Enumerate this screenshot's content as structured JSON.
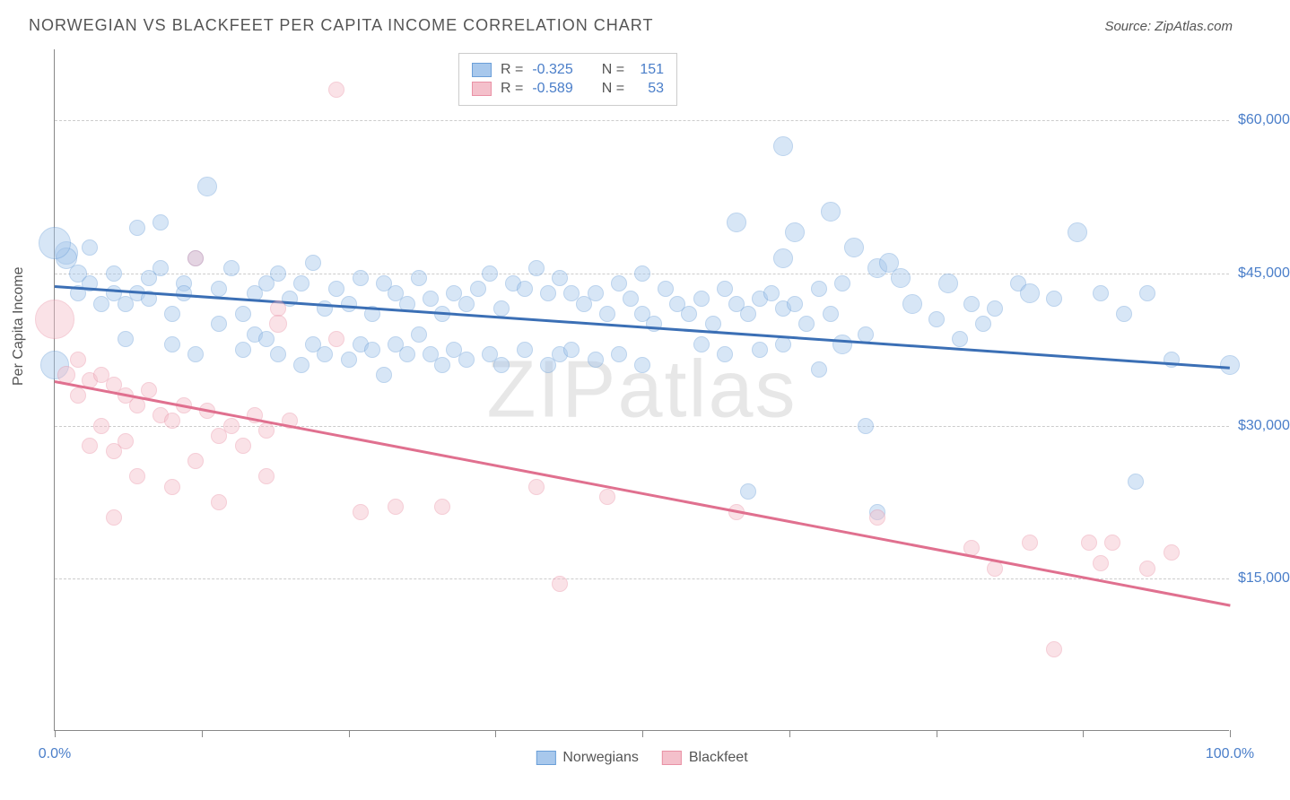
{
  "title": "NORWEGIAN VS BLACKFEET PER CAPITA INCOME CORRELATION CHART",
  "source": "Source: ZipAtlas.com",
  "watermark": "ZIPatlas",
  "y_axis_label": "Per Capita Income",
  "chart": {
    "type": "scatter",
    "background_color": "#ffffff",
    "grid_color": "#cccccc",
    "grid_style": "dashed",
    "axis_color": "#888888",
    "xlim": [
      0,
      100
    ],
    "ylim": [
      0,
      67000
    ],
    "x_ticks": [
      0,
      12.5,
      25,
      37.5,
      50,
      62.5,
      75,
      87.5,
      100
    ],
    "x_tick_labels": {
      "0": "0.0%",
      "100": "100.0%"
    },
    "y_gridlines": [
      15000,
      30000,
      45000,
      60000
    ],
    "y_tick_labels": {
      "15000": "$15,000",
      "30000": "$30,000",
      "45000": "$45,000",
      "60000": "$60,000"
    },
    "y_label_color": "#4a7ec9",
    "x_label_color": "#4a7ec9",
    "marker_radius": 9,
    "marker_opacity": 0.45,
    "line_width": 2.5
  },
  "series": [
    {
      "name": "Norwegians",
      "color_fill": "#a8c8ec",
      "color_stroke": "#6b9fd8",
      "color_line": "#3b6fb5",
      "R": "-0.325",
      "N": "151",
      "trend": {
        "x1": 0,
        "y1": 43800,
        "x2": 100,
        "y2": 35800
      },
      "points": [
        [
          1,
          47000,
          13
        ],
        [
          1,
          46500,
          12
        ],
        [
          2,
          45000,
          10
        ],
        [
          0,
          48000,
          18
        ],
        [
          0,
          36000,
          16
        ],
        [
          2,
          43000,
          9
        ],
        [
          3,
          47500,
          9
        ],
        [
          3,
          44000,
          9
        ],
        [
          4,
          42000,
          9
        ],
        [
          5,
          45000,
          9
        ],
        [
          5,
          43000,
          9
        ],
        [
          6,
          42000,
          9
        ],
        [
          6,
          38500,
          9
        ],
        [
          7,
          49500,
          9
        ],
        [
          7,
          43000,
          9
        ],
        [
          8,
          44500,
          9
        ],
        [
          8,
          42500,
          9
        ],
        [
          9,
          50000,
          9
        ],
        [
          9,
          45500,
          9
        ],
        [
          10,
          41000,
          9
        ],
        [
          10,
          38000,
          9
        ],
        [
          11,
          44000,
          9
        ],
        [
          11,
          43000,
          9
        ],
        [
          12,
          46500,
          9
        ],
        [
          12,
          37000,
          9
        ],
        [
          13,
          53500,
          11
        ],
        [
          14,
          43500,
          9
        ],
        [
          14,
          40000,
          9
        ],
        [
          15,
          45500,
          9
        ],
        [
          16,
          41000,
          9
        ],
        [
          16,
          37500,
          9
        ],
        [
          17,
          43000,
          9
        ],
        [
          17,
          39000,
          9
        ],
        [
          18,
          44000,
          9
        ],
        [
          18,
          38500,
          9
        ],
        [
          19,
          45000,
          9
        ],
        [
          19,
          37000,
          9
        ],
        [
          20,
          42500,
          9
        ],
        [
          21,
          44000,
          9
        ],
        [
          21,
          36000,
          9
        ],
        [
          22,
          46000,
          9
        ],
        [
          22,
          38000,
          9
        ],
        [
          23,
          41500,
          9
        ],
        [
          23,
          37000,
          9
        ],
        [
          24,
          43500,
          9
        ],
        [
          25,
          42000,
          9
        ],
        [
          25,
          36500,
          9
        ],
        [
          26,
          44500,
          9
        ],
        [
          26,
          38000,
          9
        ],
        [
          27,
          41000,
          9
        ],
        [
          27,
          37500,
          9
        ],
        [
          28,
          44000,
          9
        ],
        [
          28,
          35000,
          9
        ],
        [
          29,
          43000,
          9
        ],
        [
          29,
          38000,
          9
        ],
        [
          30,
          42000,
          9
        ],
        [
          30,
          37000,
          9
        ],
        [
          31,
          44500,
          9
        ],
        [
          31,
          39000,
          9
        ],
        [
          32,
          42500,
          9
        ],
        [
          32,
          37000,
          9
        ],
        [
          33,
          41000,
          9
        ],
        [
          33,
          36000,
          9
        ],
        [
          34,
          43000,
          9
        ],
        [
          34,
          37500,
          9
        ],
        [
          35,
          42000,
          9
        ],
        [
          35,
          36500,
          9
        ],
        [
          36,
          43500,
          9
        ],
        [
          37,
          45000,
          9
        ],
        [
          37,
          37000,
          9
        ],
        [
          38,
          41500,
          9
        ],
        [
          38,
          36000,
          9
        ],
        [
          39,
          44000,
          9
        ],
        [
          40,
          43500,
          9
        ],
        [
          40,
          37500,
          9
        ],
        [
          41,
          45500,
          9
        ],
        [
          42,
          43000,
          9
        ],
        [
          42,
          36000,
          9
        ],
        [
          43,
          44500,
          9
        ],
        [
          43,
          37000,
          9
        ],
        [
          44,
          43000,
          9
        ],
        [
          44,
          37500,
          9
        ],
        [
          45,
          42000,
          9
        ],
        [
          46,
          43000,
          9
        ],
        [
          46,
          36500,
          9
        ],
        [
          47,
          41000,
          9
        ],
        [
          48,
          44000,
          9
        ],
        [
          48,
          37000,
          9
        ],
        [
          49,
          42500,
          9
        ],
        [
          50,
          41000,
          9
        ],
        [
          50,
          36000,
          9
        ],
        [
          50,
          45000,
          9
        ],
        [
          51,
          40000,
          9
        ],
        [
          52,
          43500,
          9
        ],
        [
          53,
          42000,
          9
        ],
        [
          54,
          41000,
          9
        ],
        [
          55,
          42500,
          9
        ],
        [
          55,
          38000,
          9
        ],
        [
          56,
          40000,
          9
        ],
        [
          57,
          43500,
          9
        ],
        [
          57,
          37000,
          9
        ],
        [
          58,
          42000,
          9
        ],
        [
          58,
          50000,
          11
        ],
        [
          59,
          41000,
          9
        ],
        [
          59,
          23500,
          9
        ],
        [
          60,
          42500,
          9
        ],
        [
          60,
          37500,
          9
        ],
        [
          61,
          43000,
          9
        ],
        [
          62,
          41500,
          9
        ],
        [
          62,
          38000,
          9
        ],
        [
          62,
          46500,
          11
        ],
        [
          62,
          57500,
          11
        ],
        [
          63,
          42000,
          9
        ],
        [
          63,
          49000,
          11
        ],
        [
          64,
          40000,
          9
        ],
        [
          65,
          43500,
          9
        ],
        [
          65,
          35500,
          9
        ],
        [
          66,
          41000,
          9
        ],
        [
          66,
          51000,
          11
        ],
        [
          67,
          44000,
          9
        ],
        [
          67,
          38000,
          11
        ],
        [
          68,
          47500,
          11
        ],
        [
          69,
          39000,
          9
        ],
        [
          69,
          30000,
          9
        ],
        [
          70,
          45500,
          11
        ],
        [
          70,
          21500,
          9
        ],
        [
          71,
          46000,
          11
        ],
        [
          72,
          44500,
          11
        ],
        [
          73,
          42000,
          11
        ],
        [
          75,
          40500,
          9
        ],
        [
          76,
          44000,
          11
        ],
        [
          77,
          38500,
          9
        ],
        [
          78,
          42000,
          9
        ],
        [
          79,
          40000,
          9
        ],
        [
          80,
          41500,
          9
        ],
        [
          82,
          44000,
          9
        ],
        [
          83,
          43000,
          11
        ],
        [
          85,
          42500,
          9
        ],
        [
          87,
          49000,
          11
        ],
        [
          89,
          43000,
          9
        ],
        [
          91,
          41000,
          9
        ],
        [
          92,
          24500,
          9
        ],
        [
          93,
          43000,
          9
        ],
        [
          95,
          36500,
          9
        ],
        [
          100,
          36000,
          11
        ]
      ]
    },
    {
      "name": "Blackfeet",
      "color_fill": "#f4c0cb",
      "color_stroke": "#e991a5",
      "color_line": "#e0708f",
      "R": "-0.589",
      "N": "53",
      "trend": {
        "x1": 0,
        "y1": 34500,
        "x2": 100,
        "y2": 12500
      },
      "points": [
        [
          0,
          40500,
          22
        ],
        [
          1,
          35000,
          10
        ],
        [
          2,
          36500,
          9
        ],
        [
          2,
          33000,
          9
        ],
        [
          3,
          34500,
          9
        ],
        [
          3,
          28000,
          9
        ],
        [
          4,
          35000,
          9
        ],
        [
          4,
          30000,
          9
        ],
        [
          5,
          34000,
          9
        ],
        [
          5,
          27500,
          9
        ],
        [
          5,
          21000,
          9
        ],
        [
          6,
          33000,
          9
        ],
        [
          6,
          28500,
          9
        ],
        [
          7,
          32000,
          9
        ],
        [
          7,
          25000,
          9
        ],
        [
          8,
          33500,
          9
        ],
        [
          9,
          31000,
          9
        ],
        [
          10,
          30500,
          9
        ],
        [
          10,
          24000,
          9
        ],
        [
          11,
          32000,
          9
        ],
        [
          12,
          46500,
          9
        ],
        [
          12,
          26500,
          9
        ],
        [
          13,
          31500,
          9
        ],
        [
          14,
          29000,
          9
        ],
        [
          14,
          22500,
          9
        ],
        [
          15,
          30000,
          9
        ],
        [
          16,
          28000,
          9
        ],
        [
          17,
          31000,
          9
        ],
        [
          18,
          25000,
          9
        ],
        [
          18,
          29500,
          9
        ],
        [
          19,
          41500,
          9
        ],
        [
          19,
          40000,
          10
        ],
        [
          20,
          30500,
          9
        ],
        [
          24,
          38500,
          9
        ],
        [
          24,
          63000,
          9
        ],
        [
          26,
          21500,
          9
        ],
        [
          29,
          22000,
          9
        ],
        [
          33,
          22000,
          9
        ],
        [
          41,
          24000,
          9
        ],
        [
          43,
          14500,
          9
        ],
        [
          47,
          23000,
          9
        ],
        [
          58,
          21500,
          9
        ],
        [
          70,
          21000,
          9
        ],
        [
          78,
          18000,
          9
        ],
        [
          80,
          16000,
          9
        ],
        [
          83,
          18500,
          9
        ],
        [
          85,
          8000,
          9
        ],
        [
          88,
          18500,
          9
        ],
        [
          89,
          16500,
          9
        ],
        [
          90,
          18500,
          9
        ],
        [
          93,
          16000,
          9
        ],
        [
          95,
          17500,
          9
        ]
      ]
    }
  ],
  "legend_top": {
    "R_label": "R =",
    "N_label": "N ="
  },
  "legend_bottom": [
    {
      "swatch_fill": "#a8c8ec",
      "swatch_stroke": "#6b9fd8",
      "label": "Norwegians"
    },
    {
      "swatch_fill": "#f4c0cb",
      "swatch_stroke": "#e991a5",
      "label": "Blackfeet"
    }
  ]
}
